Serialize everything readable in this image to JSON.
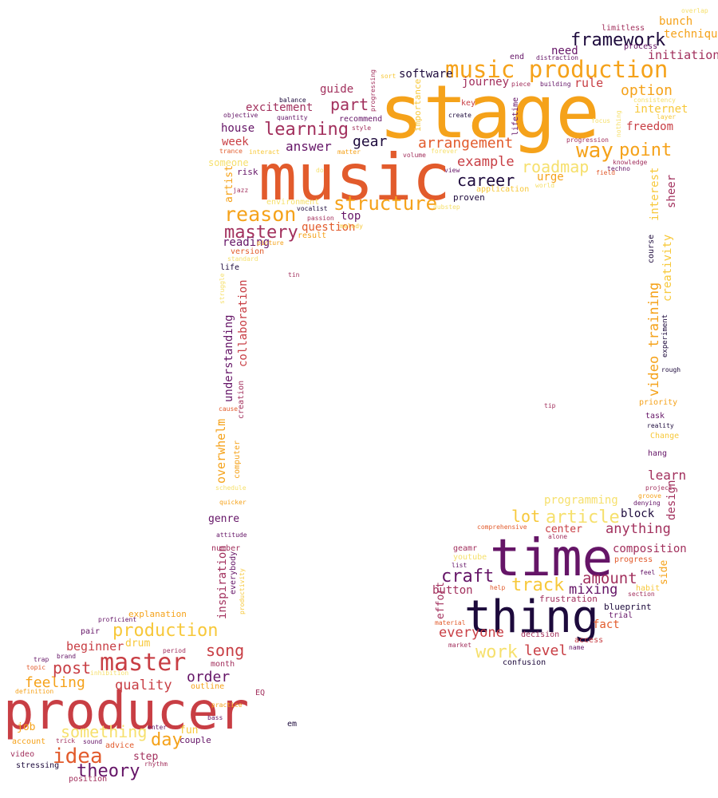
{
  "palette": {
    "orange": "#f5a21a",
    "red_orange": "#e25b2c",
    "crimson": "#c83e44",
    "rose": "#a2305d",
    "purple": "#651567",
    "dark": "#1d0a3c",
    "yellow": "#f7c83a",
    "pale_yellow": "#f6e06d"
  },
  "words": [
    {
      "text": "stage"
    },
    {
      "text": "music"
    },
    {
      "text": "time"
    },
    {
      "text": "producer"
    },
    {
      "text": "thing"
    },
    {
      "text": "music production"
    },
    {
      "text": "master"
    },
    {
      "text": "reason"
    },
    {
      "text": "structure"
    },
    {
      "text": "mastery"
    },
    {
      "text": "learning"
    },
    {
      "text": "way"
    },
    {
      "text": "point"
    },
    {
      "text": "idea"
    },
    {
      "text": "production"
    },
    {
      "text": "framework"
    },
    {
      "text": "craft"
    },
    {
      "text": "track"
    },
    {
      "text": "article"
    },
    {
      "text": "career"
    },
    {
      "text": "arrangement"
    },
    {
      "text": "something"
    },
    {
      "text": "work"
    },
    {
      "text": "amount"
    },
    {
      "text": "theory"
    },
    {
      "text": "day"
    },
    {
      "text": "roadmap"
    },
    {
      "text": "option"
    },
    {
      "text": "lot"
    },
    {
      "text": "part"
    },
    {
      "text": "song"
    },
    {
      "text": "feeling"
    },
    {
      "text": "quality"
    },
    {
      "text": "order"
    },
    {
      "text": "post"
    },
    {
      "text": "answer"
    },
    {
      "text": "gear"
    },
    {
      "text": "example"
    },
    {
      "text": "everyone"
    },
    {
      "text": "mixing"
    },
    {
      "text": "level"
    },
    {
      "text": "anything"
    },
    {
      "text": "beginner"
    },
    {
      "text": "excitement"
    },
    {
      "text": "video training"
    },
    {
      "text": "understanding"
    },
    {
      "text": "overwhelm"
    },
    {
      "text": "inspiration"
    },
    {
      "text": "collaboration"
    },
    {
      "text": "creativity"
    },
    {
      "text": "interest"
    },
    {
      "text": "sheer"
    },
    {
      "text": "design"
    },
    {
      "text": "side"
    },
    {
      "text": "effort"
    },
    {
      "text": "artist"
    },
    {
      "text": "freedom"
    },
    {
      "text": "initiation"
    },
    {
      "text": "rule"
    },
    {
      "text": "journey"
    },
    {
      "text": "guide"
    },
    {
      "text": "need"
    },
    {
      "text": "technique"
    },
    {
      "text": "bunch"
    },
    {
      "text": "software"
    },
    {
      "text": "house"
    },
    {
      "text": "week"
    },
    {
      "text": "urge"
    },
    {
      "text": "top"
    },
    {
      "text": "question"
    },
    {
      "text": "reading"
    },
    {
      "text": "internet"
    },
    {
      "text": "learn"
    },
    {
      "text": "composition"
    },
    {
      "text": "button"
    },
    {
      "text": "center"
    },
    {
      "text": "block"
    },
    {
      "text": "programming"
    },
    {
      "text": "genre"
    },
    {
      "text": "step"
    },
    {
      "text": "fun"
    },
    {
      "text": "drum"
    },
    {
      "text": "job"
    },
    {
      "text": "fact"
    },
    {
      "text": "couple"
    },
    {
      "text": "explanation"
    },
    {
      "text": "limitless"
    },
    {
      "text": "process"
    },
    {
      "text": "end"
    },
    {
      "text": "distraction"
    },
    {
      "text": "overlap"
    },
    {
      "text": "sort"
    },
    {
      "text": "piece"
    },
    {
      "text": "building"
    },
    {
      "text": "progressing"
    },
    {
      "text": "importance"
    },
    {
      "text": "lifetime"
    },
    {
      "text": "key"
    },
    {
      "text": "create"
    },
    {
      "text": "consistency"
    },
    {
      "text": "layer"
    },
    {
      "text": "focus"
    },
    {
      "text": "nothing"
    },
    {
      "text": "balance"
    },
    {
      "text": "quantity"
    },
    {
      "text": "objective"
    },
    {
      "text": "recommend"
    },
    {
      "text": "style"
    },
    {
      "text": "trance"
    },
    {
      "text": "interact"
    },
    {
      "text": "matter"
    },
    {
      "text": "volume"
    },
    {
      "text": "forever"
    },
    {
      "text": "progression"
    },
    {
      "text": "knowledge"
    },
    {
      "text": "techno"
    },
    {
      "text": "field"
    },
    {
      "text": "someone"
    },
    {
      "text": "risk"
    },
    {
      "text": "do"
    },
    {
      "text": "view"
    },
    {
      "text": "application"
    },
    {
      "text": "world"
    },
    {
      "text": "jazz"
    },
    {
      "text": "environment"
    },
    {
      "text": "proven"
    },
    {
      "text": "vocalist"
    },
    {
      "text": "dubstep"
    },
    {
      "text": "passion"
    },
    {
      "text": "melody"
    },
    {
      "text": "result"
    },
    {
      "text": "picture"
    },
    {
      "text": "version"
    },
    {
      "text": "standard"
    },
    {
      "text": "life"
    },
    {
      "text": "tin"
    },
    {
      "text": "struggle"
    },
    {
      "text": "course"
    },
    {
      "text": "experiment"
    },
    {
      "text": "rough"
    },
    {
      "text": "priority"
    },
    {
      "text": "tip"
    },
    {
      "text": "task"
    },
    {
      "text": "reality"
    },
    {
      "text": "Change"
    },
    {
      "text": "hang"
    },
    {
      "text": "cause"
    },
    {
      "text": "creation"
    },
    {
      "text": "computer"
    },
    {
      "text": "schedule"
    },
    {
      "text": "quicker"
    },
    {
      "text": "project"
    },
    {
      "text": "groove"
    },
    {
      "text": "denying"
    },
    {
      "text": "comprehensive"
    },
    {
      "text": "alone"
    },
    {
      "text": "attitude"
    },
    {
      "text": "youtube"
    },
    {
      "text": "geamr"
    },
    {
      "text": "list"
    },
    {
      "text": "progress"
    },
    {
      "text": "feel"
    },
    {
      "text": "habit"
    },
    {
      "text": "help"
    },
    {
      "text": "section"
    },
    {
      "text": "number"
    },
    {
      "text": "everybody"
    },
    {
      "text": "productivity"
    },
    {
      "text": "frustration"
    },
    {
      "text": "blueprint"
    },
    {
      "text": "trial"
    },
    {
      "text": "material"
    },
    {
      "text": "decision"
    },
    {
      "text": "access"
    },
    {
      "text": "market"
    },
    {
      "text": "name"
    },
    {
      "text": "confusion"
    },
    {
      "text": "proficient"
    },
    {
      "text": "pair"
    },
    {
      "text": "brand"
    },
    {
      "text": "period"
    },
    {
      "text": "trap"
    },
    {
      "text": "topic"
    },
    {
      "text": "inhibition"
    },
    {
      "text": "month"
    },
    {
      "text": "outline"
    },
    {
      "text": "definition"
    },
    {
      "text": "EQ"
    },
    {
      "text": "practice"
    },
    {
      "text": "bass"
    },
    {
      "text": "em"
    },
    {
      "text": "enter"
    },
    {
      "text": "account"
    },
    {
      "text": "trick"
    },
    {
      "text": "sound"
    },
    {
      "text": "advice"
    },
    {
      "text": "video"
    },
    {
      "text": "stressing"
    },
    {
      "text": "rhythm"
    },
    {
      "text": "position"
    }
  ]
}
